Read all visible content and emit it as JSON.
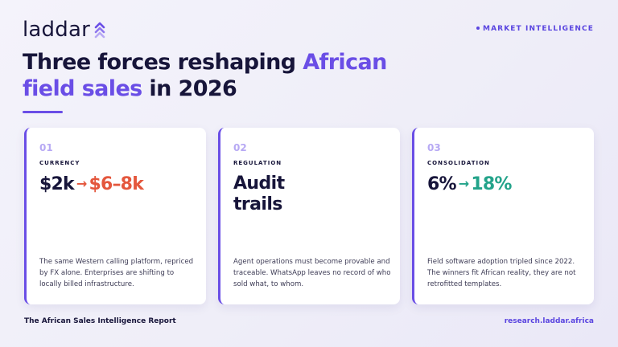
{
  "brand": {
    "name": "laddar",
    "accent": "#6a4ee6",
    "logo_icon": "chevrons-up-icon"
  },
  "tag": "MARKET INTELLIGENCE",
  "headline": {
    "line1_start": "Three forces reshaping ",
    "line1_highlight": "African",
    "line2_highlight": "field sales",
    "line2_end": " in 2026"
  },
  "cards": [
    {
      "number": "01",
      "category": "CURRENCY",
      "stat_from": "$2k",
      "arrow": "→",
      "stat_to": "$6–8k",
      "stat_to_color": "#e4573d",
      "description": "The same Western calling platform, repriced by FX alone. Enterprises are shifting to locally billed infrastructure."
    },
    {
      "number": "02",
      "category": "REGULATION",
      "stat_line1": "Audit",
      "stat_line2": "trails",
      "description": "Agent operations must become provable and traceable. WhatsApp leaves no record of who sold what, to whom."
    },
    {
      "number": "03",
      "category": "CONSOLIDATION",
      "stat_from": "6%",
      "arrow": "→",
      "stat_to": "18%",
      "stat_to_color": "#23a38a",
      "description": "Field software adoption tripled since 2022. The winners fit African reality, they are not retrofitted templates."
    }
  ],
  "footer": {
    "report": "The African Sales Intelligence Report",
    "url": "research.laddar.africa"
  }
}
